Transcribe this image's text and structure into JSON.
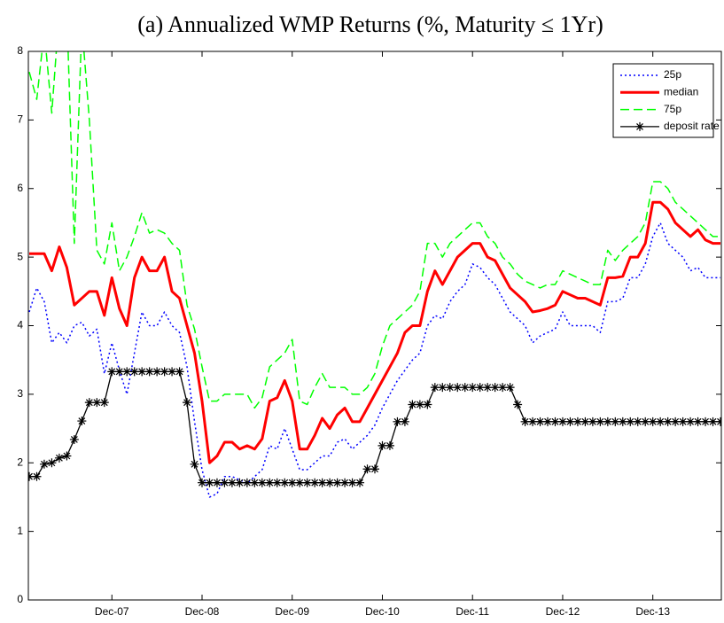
{
  "chart_data": {
    "type": "line",
    "title": "(a) Annualized WMP Returns (%, Maturity ≤ 1Yr)",
    "categories": [
      null,
      null,
      null,
      null,
      null,
      null,
      null,
      null,
      null,
      null,
      null,
      "Dec-07",
      null,
      null,
      null,
      null,
      null,
      null,
      null,
      null,
      null,
      null,
      null,
      "Dec-08",
      null,
      null,
      null,
      null,
      null,
      null,
      null,
      null,
      null,
      null,
      null,
      "Dec-09",
      null,
      null,
      null,
      null,
      null,
      null,
      null,
      null,
      null,
      null,
      null,
      "Dec-10",
      null,
      null,
      null,
      null,
      null,
      null,
      null,
      null,
      null,
      null,
      null,
      "Dec-11",
      null,
      null,
      null,
      null,
      null,
      null,
      null,
      null,
      null,
      null,
      null,
      "Dec-12",
      null,
      null,
      null,
      null,
      null,
      null,
      null,
      null,
      null,
      null,
      null,
      "Dec-13",
      null,
      null,
      null,
      null,
      null,
      null,
      null,
      null,
      null
    ],
    "ylim": [
      0,
      8
    ],
    "yticks": [
      0,
      1,
      2,
      3,
      4,
      5,
      6,
      7,
      8
    ],
    "legend": "upper right",
    "series": [
      {
        "name": "25p",
        "color": "#0000ff",
        "line_style": "dotted",
        "values": [
          4.2,
          4.55,
          4.35,
          3.75,
          3.9,
          3.75,
          4.0,
          4.05,
          3.85,
          3.95,
          3.3,
          3.75,
          3.35,
          3.0,
          3.6,
          4.2,
          4.0,
          4.0,
          4.2,
          4.0,
          3.9,
          3.4,
          2.6,
          1.9,
          1.5,
          1.55,
          1.8,
          1.8,
          1.75,
          1.7,
          1.8,
          1.9,
          2.25,
          2.2,
          2.5,
          2.2,
          1.9,
          1.9,
          2.0,
          2.1,
          2.1,
          2.3,
          2.35,
          2.2,
          2.3,
          2.4,
          2.55,
          2.8,
          3.0,
          3.2,
          3.35,
          3.5,
          3.6,
          4.0,
          4.15,
          4.1,
          4.35,
          4.5,
          4.6,
          4.9,
          4.85,
          4.7,
          4.6,
          4.4,
          4.2,
          4.1,
          4.0,
          3.75,
          3.85,
          3.9,
          3.95,
          4.2,
          4.0,
          4.0,
          4.0,
          4.0,
          3.9,
          4.35,
          4.35,
          4.4,
          4.7,
          4.7,
          4.9,
          5.3,
          5.5,
          5.2,
          5.1,
          5.0,
          4.8,
          4.85,
          4.7,
          4.7,
          4.7
        ]
      },
      {
        "name": "median",
        "color": "#ff0000",
        "line_style": "solid",
        "values": [
          5.05,
          5.05,
          5.05,
          4.8,
          5.15,
          4.85,
          4.3,
          4.4,
          4.5,
          4.5,
          4.15,
          4.7,
          4.25,
          4.0,
          4.7,
          5.0,
          4.8,
          4.8,
          5.0,
          4.5,
          4.4,
          4.0,
          3.6,
          2.9,
          2.0,
          2.1,
          2.3,
          2.3,
          2.2,
          2.25,
          2.2,
          2.35,
          2.9,
          2.95,
          3.2,
          2.9,
          2.2,
          2.2,
          2.4,
          2.65,
          2.5,
          2.7,
          2.8,
          2.6,
          2.6,
          2.8,
          3.0,
          3.2,
          3.4,
          3.6,
          3.9,
          4.0,
          4.0,
          4.5,
          4.8,
          4.6,
          4.8,
          5.0,
          5.1,
          5.2,
          5.2,
          5.0,
          4.95,
          4.75,
          4.55,
          4.45,
          4.35,
          4.2,
          4.22,
          4.25,
          4.3,
          4.5,
          4.45,
          4.4,
          4.4,
          4.35,
          4.3,
          4.7,
          4.7,
          4.72,
          5.0,
          5.0,
          5.2,
          5.8,
          5.8,
          5.7,
          5.5,
          5.4,
          5.3,
          5.4,
          5.25,
          5.2,
          5.2
        ]
      },
      {
        "name": "75p",
        "color": "#00ff00",
        "line_style": "dashed",
        "values": [
          7.7,
          7.3,
          8.3,
          7.1,
          8.6,
          8.6,
          5.2,
          8.4,
          7.0,
          5.1,
          4.9,
          5.5,
          4.8,
          5.0,
          5.3,
          5.65,
          5.35,
          5.4,
          5.35,
          5.2,
          5.1,
          4.3,
          3.95,
          3.4,
          2.9,
          2.9,
          3.0,
          3.0,
          3.0,
          3.0,
          2.8,
          2.95,
          3.4,
          3.5,
          3.6,
          3.8,
          2.9,
          2.85,
          3.1,
          3.3,
          3.1,
          3.1,
          3.1,
          3.0,
          3.0,
          3.1,
          3.3,
          3.7,
          4.0,
          4.1,
          4.2,
          4.3,
          4.5,
          5.2,
          5.2,
          5.0,
          5.2,
          5.3,
          5.4,
          5.5,
          5.5,
          5.3,
          5.2,
          5.0,
          4.9,
          4.75,
          4.65,
          4.6,
          4.55,
          4.6,
          4.6,
          4.8,
          4.75,
          4.7,
          4.65,
          4.6,
          4.6,
          5.1,
          4.95,
          5.1,
          5.2,
          5.3,
          5.5,
          6.1,
          6.1,
          6.0,
          5.8,
          5.7,
          5.6,
          5.5,
          5.4,
          5.3,
          5.3
        ]
      },
      {
        "name": "deposit rate",
        "color": "#000000",
        "line_style": "solid",
        "marker": "*",
        "values": [
          1.8,
          1.8,
          1.98,
          2.0,
          2.07,
          2.1,
          2.34,
          2.61,
          2.88,
          2.88,
          2.88,
          3.33,
          3.33,
          3.33,
          3.33,
          3.33,
          3.33,
          3.33,
          3.33,
          3.33,
          3.33,
          2.88,
          1.98,
          1.71,
          1.71,
          1.71,
          1.71,
          1.71,
          1.71,
          1.71,
          1.71,
          1.71,
          1.71,
          1.71,
          1.71,
          1.71,
          1.71,
          1.71,
          1.71,
          1.71,
          1.71,
          1.71,
          1.71,
          1.71,
          1.71,
          1.91,
          1.91,
          2.25,
          2.25,
          2.6,
          2.6,
          2.85,
          2.85,
          2.85,
          3.1,
          3.1,
          3.1,
          3.1,
          3.1,
          3.1,
          3.1,
          3.1,
          3.1,
          3.1,
          3.1,
          2.85,
          2.6,
          2.6,
          2.6,
          2.6,
          2.6,
          2.6,
          2.6,
          2.6,
          2.6,
          2.6,
          2.6,
          2.6,
          2.6,
          2.6,
          2.6,
          2.6,
          2.6,
          2.6,
          2.6,
          2.6,
          2.6,
          2.6,
          2.6,
          2.6,
          2.6,
          2.6,
          2.6
        ]
      }
    ]
  }
}
